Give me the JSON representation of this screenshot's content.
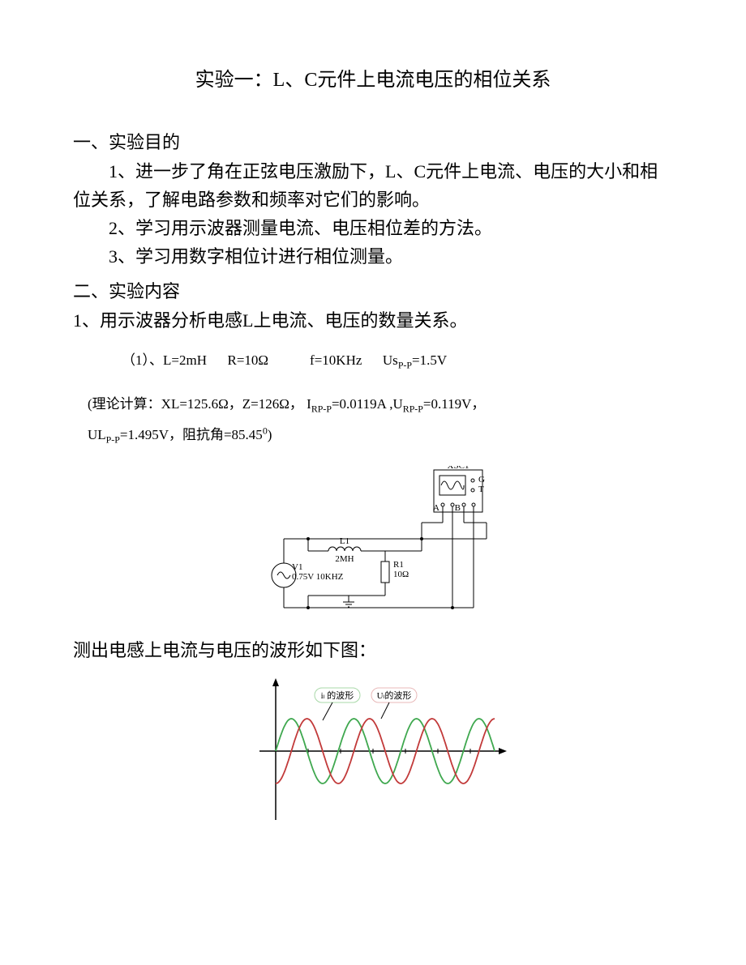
{
  "title": "实验一：L、C元件上电流电压的相位关系",
  "sec1": {
    "head": "一、实验目的",
    "p1": "1、进一步了角在正弦电压激励下，L、C元件上电流、电压的大小和相位关系，了解电路参数和频率对它们的影响。",
    "p2": "2、学习用示波器测量电流、电压相位差的方法。",
    "p3": "3、学习用数字相位计进行相位测量。"
  },
  "sec2": {
    "head": "二、实验内容",
    "p1": "1、用示波器分析电感L上电流、电压的数量关系。"
  },
  "params": {
    "label": "（1）、",
    "L_label": "L=2mH",
    "R_label": "R=10Ω",
    "f_label": "f=10KHz",
    "Us_prefix": "Us",
    "Us_sub": "P-P",
    "Us_val": "=1.5V"
  },
  "calc": {
    "line1_a": "(理论计算：XL=125.6Ω，Z=126Ω， I",
    "line1_sub1": "RP-P",
    "line1_b": "=0.0119A ,U",
    "line1_sub2": "RP-P",
    "line1_c": "=0.119V，",
    "line2_a": "UL",
    "line2_sub": "P-P",
    "line2_b": "=1.495V，阻抗角=85.45",
    "line2_sup": "0",
    "line2_c": ")"
  },
  "circuit": {
    "scope_label": "XSC1",
    "L_top": "L1",
    "L_bot": "2MH",
    "R_top": "R1",
    "R_bot": "10Ω",
    "V_top": "V1",
    "V_bot": "0.75V 10KHZ",
    "scope_A": "A",
    "scope_B": "B",
    "scope_G": "G",
    "scope_T": "T"
  },
  "caption": "测出电感上电流与电压的波形如下图：",
  "wave": {
    "label_i": "iₗ 的波形",
    "label_u": "Uₗ的波形",
    "color_i": "#3fa84f",
    "color_u": "#c23a3a",
    "color_i_box": "#a8d8a8",
    "color_u_box": "#e8b8b8",
    "axis_color": "#000000",
    "amplitude": 40,
    "cycles": 3.5,
    "phase_shift_deg": 90
  }
}
